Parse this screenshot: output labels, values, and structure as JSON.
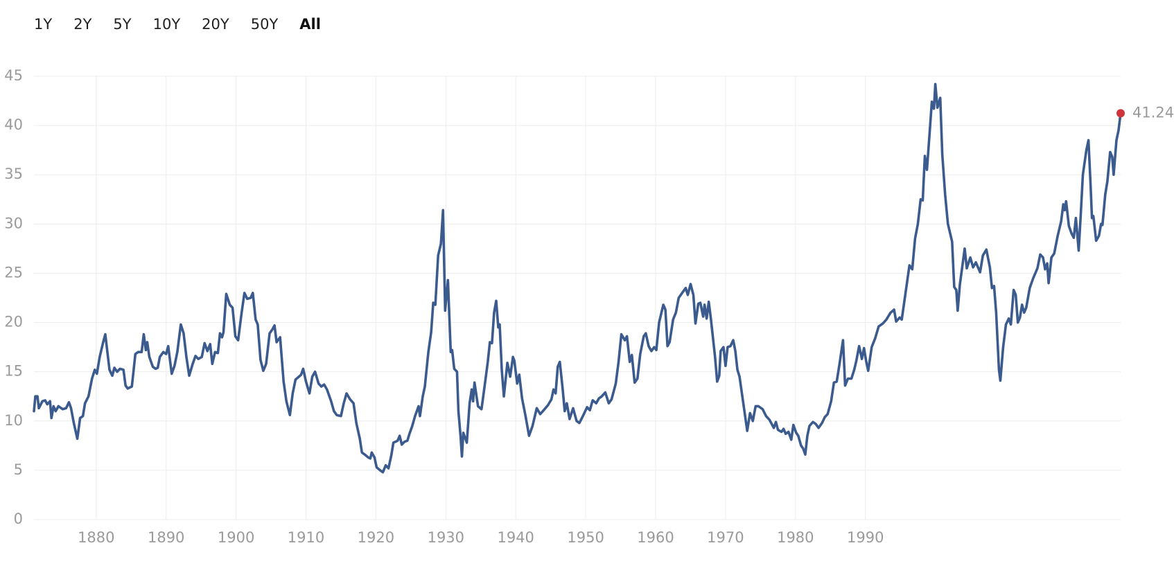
{
  "chart_data": {
    "type": "line",
    "range_buttons": [
      "1Y",
      "2Y",
      "5Y",
      "10Y",
      "20Y",
      "50Y",
      "All"
    ],
    "selected": "All",
    "xlim": [
      1871.1,
      2026.5
    ],
    "xticks": [
      1880,
      1890,
      1900,
      1910,
      1920,
      1930,
      1940,
      1950,
      1960,
      1970,
      1980,
      1990
    ],
    "ylim": [
      0,
      45
    ],
    "yticks": [
      0,
      5,
      10,
      15,
      20,
      25,
      30,
      35,
      40,
      45
    ],
    "grid": true,
    "last_point_color": "#d0343b",
    "x": [
      1871.1,
      1871.3,
      1871.6,
      1871.8,
      1872.3,
      1872.7,
      1873.0,
      1873.4,
      1873.6,
      1873.9,
      1874.2,
      1874.6,
      1875.2,
      1875.7,
      1876.1,
      1876.4,
      1876.8,
      1877.3,
      1877.7,
      1878.1,
      1878.4,
      1878.9,
      1879.4,
      1879.8,
      1880.1,
      1880.5,
      1881.0,
      1881.3,
      1881.6,
      1881.9,
      1882.3,
      1882.6,
      1883.0,
      1883.4,
      1883.9,
      1884.2,
      1884.5,
      1885.1,
      1885.6,
      1886.0,
      1886.5,
      1886.8,
      1887.1,
      1887.3,
      1887.6,
      1888.1,
      1888.5,
      1888.8,
      1889.1,
      1889.6,
      1890.0,
      1890.3,
      1890.8,
      1891.2,
      1891.6,
      1892.1,
      1892.5,
      1892.9,
      1893.3,
      1893.8,
      1894.2,
      1894.6,
      1895.1,
      1895.5,
      1895.9,
      1896.3,
      1896.6,
      1897.0,
      1897.4,
      1897.7,
      1898.0,
      1898.2,
      1898.6,
      1899.1,
      1899.5,
      1899.9,
      1900.3,
      1900.8,
      1901.2,
      1901.6,
      1902.1,
      1902.4,
      1902.8,
      1903.1,
      1903.5,
      1903.9,
      1904.3,
      1904.8,
      1905.2,
      1905.5,
      1905.8,
      1906.3,
      1906.8,
      1907.2,
      1907.7,
      1908.1,
      1908.5,
      1909.0,
      1909.3,
      1909.6,
      1910.0,
      1910.5,
      1910.9,
      1911.3,
      1911.8,
      1912.2,
      1912.6,
      1913.0,
      1913.6,
      1914.0,
      1914.4,
      1915.0,
      1915.4,
      1915.8,
      1916.3,
      1916.8,
      1917.2,
      1917.7,
      1918.0,
      1918.4,
      1918.9,
      1919.2,
      1919.4,
      1919.8,
      1920.1,
      1920.6,
      1921.0,
      1921.4,
      1921.8,
      1922.2,
      1922.5,
      1923.1,
      1923.4,
      1923.7,
      1924.1,
      1924.5,
      1924.8,
      1925.2,
      1925.6,
      1926.1,
      1926.3,
      1926.7,
      1927.0,
      1927.5,
      1927.9,
      1928.2,
      1928.5,
      1928.9,
      1929.3,
      1929.6,
      1929.9,
      1930.3,
      1930.7,
      1930.9,
      1931.2,
      1931.6,
      1931.8,
      1932.1,
      1932.3,
      1932.5,
      1933.0,
      1933.4,
      1933.7,
      1933.9,
      1934.1,
      1934.6,
      1935.1,
      1935.5,
      1936.0,
      1936.3,
      1936.6,
      1936.9,
      1937.2,
      1937.5,
      1937.7,
      1938.0,
      1938.3,
      1938.8,
      1939.2,
      1939.6,
      1939.8,
      1940.2,
      1940.5,
      1940.9,
      1941.4,
      1941.9,
      1942.4,
      1943.0,
      1943.5,
      1944.0,
      1944.6,
      1945.1,
      1945.4,
      1945.7,
      1946.0,
      1946.3,
      1946.7,
      1947.0,
      1947.3,
      1947.7,
      1948.2,
      1948.7,
      1949.1,
      1949.6,
      1950.2,
      1950.6,
      1951.0,
      1951.5,
      1951.9,
      1952.3,
      1952.8,
      1953.3,
      1953.7,
      1954.3,
      1954.7,
      1955.1,
      1955.6,
      1955.9,
      1956.3,
      1956.6,
      1957.0,
      1957.4,
      1957.8,
      1958.3,
      1958.6,
      1959.0,
      1959.4,
      1959.8,
      1960.1,
      1960.5,
      1961.1,
      1961.4,
      1961.7,
      1962.0,
      1962.5,
      1962.9,
      1963.3,
      1963.9,
      1964.3,
      1964.6,
      1965.0,
      1965.4,
      1965.7,
      1966.1,
      1966.4,
      1966.8,
      1967.0,
      1967.3,
      1967.6,
      1967.9,
      1968.5,
      1968.8,
      1969.1,
      1969.3,
      1969.7,
      1970.0,
      1970.3,
      1970.7,
      1971.1,
      1971.4,
      1971.7,
      1972.0,
      1972.5,
      1972.8,
      1973.1,
      1973.5,
      1973.9,
      1974.3,
      1974.7,
      1975.3,
      1975.8,
      1976.3,
      1976.9,
      1977.2,
      1977.5,
      1978.0,
      1978.3,
      1978.6,
      1979.0,
      1979.4,
      1979.7,
      1980.1,
      1980.4,
      1980.8,
      1981.1,
      1981.4,
      1981.7,
      1982.0,
      1982.5,
      1982.9,
      1983.3,
      1983.8,
      1984.2,
      1984.6,
      1985.1,
      1985.5,
      1985.9,
      1986.3,
      1986.8,
      1987.1,
      1987.5,
      1988.0,
      1988.4,
      1988.7,
      1989.1,
      1989.5,
      1989.8,
      1990.1,
      1990.4,
      1990.9,
      1991.4,
      1991.9,
      1992.5,
      1993.0,
      1993.6,
      1994.1,
      1994.4,
      1994.9,
      1995.2,
      1995.7,
      1996.3,
      1996.7,
      1997.1,
      1997.5,
      1997.9,
      1998.2,
      1998.5,
      1998.8,
      1999.2,
      1999.5,
      1999.8,
      2000.0,
      2000.3,
      2000.7,
      2001.0,
      2001.4,
      2001.8,
      2002.4,
      2002.7,
      2003.0,
      2003.2,
      2003.5,
      2004.2,
      2004.5,
      2005.0,
      2005.4,
      2005.8,
      2006.4,
      2006.8,
      2007.3,
      2007.8,
      2008.1,
      2008.4,
      2008.7,
      2009.1,
      2009.3,
      2009.7,
      2010.1,
      2010.5,
      2010.8,
      2011.2,
      2011.5,
      2011.8,
      2012.1,
      2012.4,
      2012.7,
      2013.0,
      2013.5,
      2014.0,
      2014.6,
      2015.0,
      2015.4,
      2015.7,
      2016.0,
      2016.2,
      2016.6,
      2017.0,
      2017.5,
      2018.0,
      2018.3,
      2018.5,
      2018.7,
      2019.1,
      2019.5,
      2019.8,
      2020.1,
      2020.5,
      2020.8,
      2021.1,
      2021.6,
      2021.9,
      2022.2,
      2022.4,
      2022.6,
      2023.0,
      2023.4,
      2023.7,
      2023.9,
      2024.3,
      2024.6,
      2025.0,
      2025.3,
      2025.5,
      2025.9,
      2026.2,
      2026.5
    ],
    "series": [
      {
        "color": "#3b5a8e",
        "values": [
          11,
          12.5,
          12.5,
          11.3,
          12,
          12.1,
          11.7,
          12,
          10.3,
          11.5,
          11,
          11.5,
          11.2,
          11.3,
          11.9,
          11.3,
          9.8,
          8.2,
          10.3,
          10.5,
          11.8,
          12.5,
          14.3,
          15.2,
          14.8,
          16.5,
          18,
          18.8,
          17,
          15.2,
          14.6,
          15.4,
          15,
          15.3,
          15.2,
          13.6,
          13.3,
          13.5,
          16.8,
          17,
          17,
          18.8,
          17.2,
          18,
          16.5,
          15.5,
          15.3,
          15.4,
          16.5,
          17,
          16.8,
          17.6,
          14.8,
          15.6,
          17,
          19.8,
          18.9,
          16.5,
          14.6,
          15.8,
          16.6,
          16.3,
          16.5,
          17.9,
          17.1,
          17.8,
          15.8,
          17,
          16.9,
          18.9,
          18.5,
          19,
          22.9,
          21.8,
          21.5,
          18.6,
          18.2,
          21,
          23,
          22.4,
          22.5,
          23,
          20.3,
          19.8,
          16.2,
          15.1,
          15.8,
          18.9,
          19.3,
          19.7,
          18,
          18.5,
          14,
          12,
          10.6,
          12.8,
          14.2,
          14.5,
          14.7,
          15.3,
          14,
          12.8,
          14.5,
          15,
          13.8,
          13.5,
          13.7,
          13.2,
          12,
          11,
          10.6,
          10.5,
          11.8,
          12.8,
          12.2,
          11.8,
          9.8,
          8.2,
          6.8,
          6.6,
          6.3,
          6.2,
          6.8,
          6.3,
          5.3,
          5,
          4.8,
          5.5,
          5.2,
          6.5,
          7.8,
          8,
          8.5,
          7.6,
          7.9,
          8,
          8.7,
          9.5,
          10.5,
          11.5,
          10.5,
          12.5,
          13.5,
          17,
          19,
          22,
          21.8,
          26.8,
          28,
          31.4,
          21.2,
          24.3,
          17,
          17.2,
          15.3,
          15,
          11,
          8.5,
          6.4,
          8.8,
          7.8,
          11.8,
          13.2,
          12,
          13.9,
          11.5,
          11.2,
          13.3,
          16,
          18,
          17.9,
          21,
          22.2,
          19.5,
          19.8,
          15.2,
          12.5,
          15.9,
          14.5,
          16.5,
          16.1,
          13.8,
          14.7,
          12.3,
          10.5,
          8.5,
          9.5,
          11.3,
          10.7,
          11.1,
          11.6,
          12.2,
          13.2,
          12.8,
          15.5,
          16,
          13.3,
          11,
          11.8,
          10.2,
          11.3,
          10,
          9.8,
          10.5,
          11.4,
          11.1,
          12.1,
          11.8,
          12.3,
          12.5,
          12.9,
          11.8,
          12.2,
          13.8,
          16,
          18.8,
          18.2,
          18.6,
          16,
          16.7,
          13.9,
          14.3,
          16.8,
          18.6,
          18.9,
          17.6,
          17.1,
          17.5,
          17.2,
          20,
          21.8,
          21.3,
          17.6,
          18,
          20.3,
          21,
          22.5,
          23.1,
          23.5,
          22.8,
          23.9,
          22.8,
          19.9,
          21.9,
          22,
          20.6,
          21.8,
          20.4,
          22.1,
          20.4,
          16.5,
          14,
          14.6,
          17.1,
          17.5,
          15.6,
          17.5,
          17.6,
          18.2,
          17.1,
          15.2,
          14.5,
          12,
          10.5,
          9,
          10.8,
          10,
          11.5,
          11.5,
          11.2,
          10.5,
          10.1,
          9.3,
          9.9,
          9.1,
          8.9,
          9.2,
          8.7,
          8.9,
          8.1,
          9.6,
          8.8,
          8.5,
          7.5,
          7.2,
          6.6,
          8.5,
          9.5,
          9.9,
          9.7,
          9.3,
          9.8,
          10.4,
          10.7,
          12,
          13.9,
          14,
          15.8,
          18.2,
          13.6,
          14.3,
          14.3,
          15.2,
          16.1,
          17.6,
          16.3,
          17.4,
          16.1,
          15.1,
          17.5,
          18.4,
          19.6,
          19.9,
          20.3,
          21,
          21.3,
          20.1,
          20.5,
          20.3,
          22.8,
          25.8,
          25.4,
          28.5,
          30,
          32.5,
          32.4,
          36.9,
          35.5,
          39.4,
          42.4,
          41.7,
          44.2,
          41.8,
          42.8,
          37,
          33,
          30,
          28.2,
          23.6,
          23.3,
          21.2,
          23.8,
          27.5,
          25.5,
          26.6,
          25.6,
          26.1,
          25.1,
          26.8,
          27.4,
          25.6,
          23.5,
          23.7,
          21,
          15.2,
          14.1,
          17.5,
          19.8,
          20.4,
          19.8,
          23.3,
          22.8,
          20,
          20.5,
          21.8,
          21,
          21.5,
          23.5,
          24.5,
          25.5,
          26.9,
          26.6,
          25.4,
          26,
          24,
          26.6,
          27,
          28.8,
          30.3,
          32,
          31.4,
          32.3,
          29.8,
          29,
          28.6,
          30.6,
          27.3,
          31,
          35,
          37.5,
          38.5,
          34,
          30.6,
          30.8,
          28.3,
          28.8,
          30,
          29.9,
          33,
          34.3,
          37.3,
          36.8,
          35,
          38.5,
          39.5,
          41.24
        ]
      }
    ]
  }
}
